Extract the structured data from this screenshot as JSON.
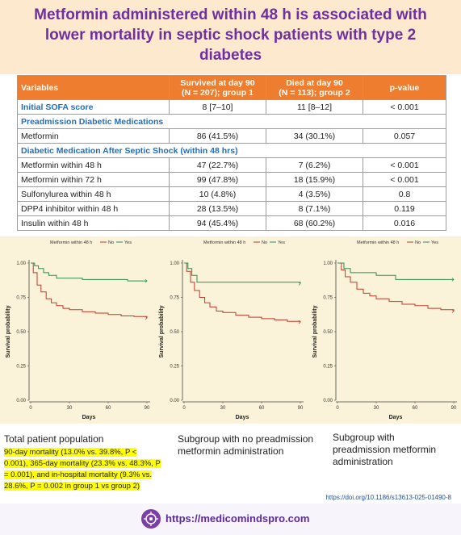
{
  "title": "Metformin administered within 48 h is associated with lower mortality in septic shock patients with type 2 diabetes",
  "table": {
    "headers": {
      "variables": "Variables",
      "survived_l1": "Survived at day 90",
      "survived_l2": "(N = 207); group 1",
      "died_l1": "Died at day 90",
      "died_l2": "(N = 113); group 2",
      "pvalue": "p-value"
    },
    "rows": [
      {
        "kind": "row",
        "label": "Initial SOFA score",
        "survived": "8 [7–10]",
        "died": "11 [8–12]",
        "p": "< 0.001",
        "bold_label": true
      },
      {
        "kind": "section",
        "label": "Preadmission Diabetic Medications"
      },
      {
        "kind": "row",
        "label": "Metformin",
        "survived": "86 (41.5%)",
        "died": "34 (30.1%)",
        "p": "0.057"
      },
      {
        "kind": "section",
        "label": "Diabetic Medication After Septic Shock (within 48 hrs)"
      },
      {
        "kind": "row",
        "label": "Metformin within 48 h",
        "survived": "47 (22.7%)",
        "died": "7 (6.2%)",
        "p": "< 0.001"
      },
      {
        "kind": "row",
        "label": "Metformin within 72 h",
        "survived": "99 (47.8%)",
        "died": "18 (15.9%)",
        "p": "< 0.001"
      },
      {
        "kind": "row",
        "label": "Sulfonylurea within 48 h",
        "survived": "10 (4.8%)",
        "died": "4 (3.5%)",
        "p": "0.8"
      },
      {
        "kind": "row",
        "label": "DPP4 inhibitor within 48 h",
        "survived": "28 (13.5%)",
        "died": "8 (7.1%)",
        "p": "0.119"
      },
      {
        "kind": "row",
        "label": "Insulin within 48 h",
        "survived": "94 (45.4%)",
        "died": "68 (60.2%)",
        "p": "0.016"
      }
    ]
  },
  "chart_data": [
    {
      "type": "line",
      "legend_title": "Metformin within 48 h",
      "legend_no": "No",
      "legend_yes": "Yes",
      "xlabel": "Days",
      "ylabel": "Survival probability",
      "xticks": [
        "0",
        "30",
        "60",
        "90"
      ],
      "yticks": [
        "0.00",
        "0.25",
        "0.50",
        "0.75",
        "1.00"
      ],
      "xlim": [
        0,
        90
      ],
      "ylim": [
        0,
        1
      ],
      "series": [
        {
          "name": "No",
          "color": "#c0392b",
          "x": [
            0,
            2,
            5,
            8,
            12,
            16,
            20,
            25,
            30,
            40,
            50,
            60,
            70,
            80,
            90
          ],
          "y": [
            1.0,
            0.93,
            0.84,
            0.79,
            0.74,
            0.71,
            0.69,
            0.67,
            0.66,
            0.645,
            0.635,
            0.625,
            0.615,
            0.61,
            0.6
          ]
        },
        {
          "name": "Yes",
          "color": "#2e8b57",
          "x": [
            0,
            3,
            6,
            10,
            14,
            20,
            30,
            40,
            60,
            75,
            90
          ],
          "y": [
            1.0,
            0.98,
            0.96,
            0.93,
            0.91,
            0.89,
            0.89,
            0.88,
            0.88,
            0.87,
            0.87
          ]
        }
      ]
    },
    {
      "type": "line",
      "legend_title": "Metformin within 48 h",
      "legend_no": "No",
      "legend_yes": "Yes",
      "xlabel": "Days",
      "ylabel": "Survival probability",
      "xticks": [
        "0",
        "30",
        "60",
        "90"
      ],
      "yticks": [
        "0.00",
        "0.25",
        "0.50",
        "0.75",
        "1.00"
      ],
      "xlim": [
        0,
        90
      ],
      "ylim": [
        0,
        1
      ],
      "series": [
        {
          "name": "No",
          "color": "#c0392b",
          "x": [
            0,
            2,
            5,
            8,
            12,
            16,
            20,
            25,
            30,
            40,
            50,
            60,
            70,
            80,
            90
          ],
          "y": [
            1.0,
            0.94,
            0.86,
            0.8,
            0.75,
            0.71,
            0.68,
            0.65,
            0.64,
            0.62,
            0.605,
            0.595,
            0.585,
            0.575,
            0.57
          ]
        },
        {
          "name": "Yes",
          "color": "#2e8b57",
          "x": [
            0,
            3,
            6,
            10,
            20,
            30,
            60,
            90
          ],
          "y": [
            1.0,
            0.96,
            0.91,
            0.86,
            0.86,
            0.86,
            0.86,
            0.85
          ]
        }
      ]
    },
    {
      "type": "line",
      "legend_title": "Metformin within 48 h",
      "legend_no": "No",
      "legend_yes": "Yes",
      "xlabel": "Days",
      "ylabel": "Survival probability",
      "xticks": [
        "0",
        "30",
        "60",
        "90"
      ],
      "yticks": [
        "0.00",
        "0.25",
        "0.50",
        "0.75",
        "1.00"
      ],
      "xlim": [
        0,
        90
      ],
      "ylim": [
        0,
        1
      ],
      "series": [
        {
          "name": "No",
          "color": "#c0392b",
          "x": [
            0,
            3,
            6,
            10,
            15,
            20,
            25,
            30,
            40,
            50,
            60,
            70,
            80,
            90
          ],
          "y": [
            1.0,
            0.95,
            0.9,
            0.86,
            0.81,
            0.78,
            0.76,
            0.74,
            0.72,
            0.7,
            0.69,
            0.67,
            0.66,
            0.65
          ]
        },
        {
          "name": "Yes",
          "color": "#2e8b57",
          "x": [
            0,
            5,
            10,
            20,
            30,
            45,
            60,
            75,
            90
          ],
          "y": [
            1.0,
            0.96,
            0.93,
            0.93,
            0.91,
            0.88,
            0.88,
            0.88,
            0.88
          ]
        }
      ]
    }
  ],
  "captions": {
    "total_title": "Total patient population",
    "total_detail": "90-day mortality (13.0% vs. 39.8%, P < 0.001), 365-day mortality (23.3% vs. 48.3%, P = 0.001), and in-hospital mortality (9.3% vs. 28.6%, P = 0.002 in group 1 vs group 2)",
    "sub_no": "Subgroup with no preadmission metformin administration",
    "sub_yes": "Subgroup with preadmission metformin administration"
  },
  "doi": "https://doi.org/10.1186/s13613-025-01490-8",
  "footer_url": "https://medicomindspro.com",
  "colors": {
    "title": "#6f2f9f",
    "table_header": "#ee7d2f",
    "section_text": "#1f6fc0",
    "highlight": "#ffff00"
  }
}
